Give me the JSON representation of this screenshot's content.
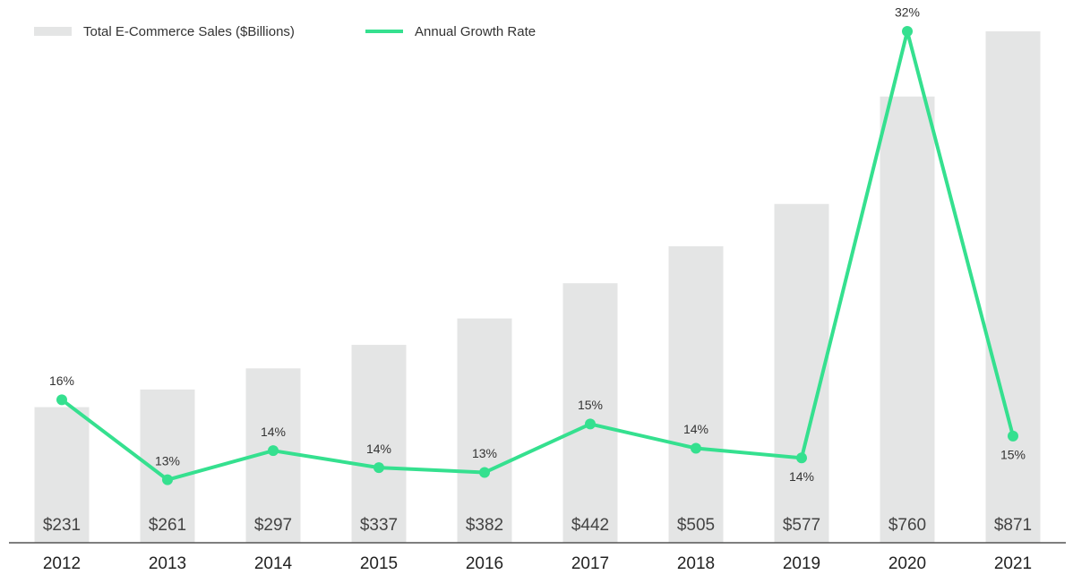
{
  "chart_data": {
    "type": "bar-line",
    "categories": [
      "2012",
      "2013",
      "2014",
      "2015",
      "2016",
      "2017",
      "2018",
      "2019",
      "2020",
      "2021"
    ],
    "series": [
      {
        "name": "Total E-Commerce Sales ($Billions)",
        "type": "bar",
        "color": "#e4e5e5",
        "values": [
          231,
          261,
          297,
          337,
          382,
          442,
          505,
          577,
          760,
          871
        ],
        "value_labels": [
          "$231",
          "$261",
          "$297",
          "$337",
          "$382",
          "$442",
          "$505",
          "$577",
          "$760",
          "$871"
        ]
      },
      {
        "name": "Annual Growth Rate",
        "type": "line",
        "axis": "y2",
        "color": "#35e08f",
        "values": [
          16.4,
          13.1,
          14.3,
          13.6,
          13.4,
          15.4,
          14.4,
          14.0,
          31.6,
          14.9
        ],
        "value_labels": [
          "16%",
          "13%",
          "14%",
          "14%",
          "13%",
          "15%",
          "14%",
          "14%",
          "32%",
          "15%"
        ]
      }
    ],
    "ylim": [
      0,
      871
    ],
    "y2lim": [
      10.5,
      31.6
    ],
    "legend": "top-left"
  }
}
